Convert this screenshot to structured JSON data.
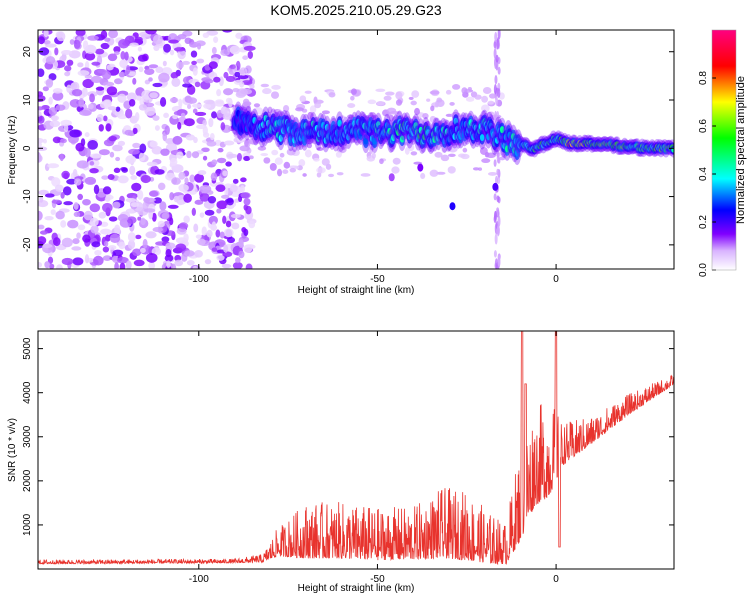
{
  "chart_data": [
    {
      "type": "heatmap",
      "title": "KOM5.2025.210.05.29.G23",
      "xlabel": "Height of straight line (km)",
      "ylabel": "Frequency (Hz)",
      "xlim": [
        -145,
        33
      ],
      "ylim": [
        -25,
        24.5
      ],
      "x_ticks": [
        "-100",
        "-50",
        "0"
      ],
      "y_ticks": [
        "20",
        "10",
        "0",
        "-10",
        "-20"
      ],
      "colorbar": {
        "label": "Normalized spectral amplitude",
        "range": [
          0,
          1
        ],
        "ticks": [
          "0.0",
          "0.2",
          "0.4",
          "0.6",
          "0.8"
        ]
      },
      "colormap": [
        "#ffffff",
        "#8000ff",
        "#0000ff",
        "#00ffff",
        "#00ff00",
        "#ffff00",
        "#ff0000",
        "#ff0080"
      ],
      "ridge": [
        {
          "x": -88,
          "y": 6,
          "amp": 0.3
        },
        {
          "x": -80,
          "y": 4,
          "amp": 0.45
        },
        {
          "x": -72,
          "y": 3.5,
          "amp": 0.4
        },
        {
          "x": -65,
          "y": 3,
          "amp": 0.45
        },
        {
          "x": -58,
          "y": 4,
          "amp": 0.4
        },
        {
          "x": -50,
          "y": 3,
          "amp": 0.45
        },
        {
          "x": -42,
          "y": 3.5,
          "amp": 0.5
        },
        {
          "x": -35,
          "y": 3,
          "amp": 0.5
        },
        {
          "x": -28,
          "y": 4,
          "amp": 0.45
        },
        {
          "x": -20,
          "y": 4,
          "amp": 0.45
        },
        {
          "x": -12,
          "y": 1,
          "amp": 0.45
        },
        {
          "x": -6,
          "y": 0,
          "amp": 0.55
        },
        {
          "x": 0,
          "y": 2,
          "amp": 0.5
        },
        {
          "x": 4,
          "y": 1,
          "amp": 0.75
        },
        {
          "x": 10,
          "y": 1,
          "amp": 0.65
        },
        {
          "x": 18,
          "y": 0.5,
          "amp": 0.6
        },
        {
          "x": 26,
          "y": 0,
          "amp": 0.55
        },
        {
          "x": 33,
          "y": 0,
          "amp": 0.6
        }
      ],
      "noise_region_x": [
        -145,
        -85
      ]
    },
    {
      "type": "line",
      "xlabel": "Height of straight line (km)",
      "ylabel": "SNR (10 * v/v)",
      "xlim": [
        -145,
        33
      ],
      "ylim": [
        0,
        5400
      ],
      "x_ticks": [
        "-100",
        "-50",
        "0"
      ],
      "y_ticks": [
        "1000",
        "2000",
        "3000",
        "4000",
        "5000"
      ],
      "color": "#e8332d",
      "envelope": [
        {
          "x": -145,
          "y": 140,
          "noise": 60
        },
        {
          "x": -90,
          "y": 160,
          "noise": 60
        },
        {
          "x": -82,
          "y": 200,
          "noise": 120
        },
        {
          "x": -78,
          "y": 450,
          "noise": 400
        },
        {
          "x": -70,
          "y": 560,
          "noise": 800
        },
        {
          "x": -60,
          "y": 560,
          "noise": 800
        },
        {
          "x": -50,
          "y": 500,
          "noise": 750
        },
        {
          "x": -40,
          "y": 520,
          "noise": 750
        },
        {
          "x": -32,
          "y": 650,
          "noise": 1000
        },
        {
          "x": -25,
          "y": 600,
          "noise": 1000
        },
        {
          "x": -18,
          "y": 400,
          "noise": 700
        },
        {
          "x": -14,
          "y": 350,
          "noise": 600
        },
        {
          "x": -10,
          "y": 1200,
          "noise": 1400
        },
        {
          "x": -6,
          "y": 2000,
          "noise": 1400
        },
        {
          "x": -2,
          "y": 2200,
          "noise": 1400
        },
        {
          "x": 2,
          "y": 2600,
          "noise": 600
        },
        {
          "x": 10,
          "y": 3000,
          "noise": 400
        },
        {
          "x": 20,
          "y": 3600,
          "noise": 300
        },
        {
          "x": 33,
          "y": 4250,
          "noise": 150
        }
      ],
      "spikes": [
        {
          "x": -9.5,
          "y": 5400
        },
        {
          "x": -8.5,
          "y": 4200
        },
        {
          "x": 0,
          "y": 5400
        },
        {
          "x": 1,
          "y": 500
        }
      ]
    }
  ]
}
